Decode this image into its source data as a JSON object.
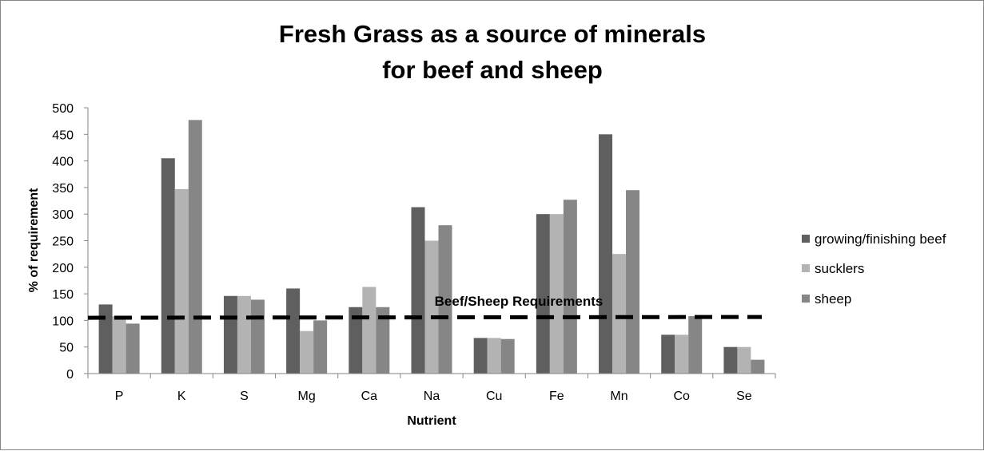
{
  "chart_data": {
    "type": "bar",
    "title_lines": [
      "Fresh Grass as a source of minerals",
      "for beef and sheep"
    ],
    "xlabel": "Nutrient",
    "ylabel": "% of requirement",
    "ylim": [
      0,
      500
    ],
    "yticks": [
      "0",
      "50",
      "100",
      "150",
      "200",
      "250",
      "300",
      "350",
      "400",
      "450",
      "500"
    ],
    "categories": [
      "P",
      "K",
      "S",
      "Mg",
      "Ca",
      "Na",
      "Cu",
      "Fe",
      "Mn",
      "Co",
      "Se"
    ],
    "series": [
      {
        "name": "growing/finishing beef",
        "color": "#5f5f5f",
        "values": [
          130,
          405,
          146,
          160,
          125,
          313,
          67,
          300,
          450,
          73,
          50
        ]
      },
      {
        "name": "sucklers",
        "color": "#b3b3b3",
        "values": [
          108,
          347,
          146,
          80,
          163,
          250,
          67,
          300,
          225,
          73,
          50
        ]
      },
      {
        "name": "sheep",
        "color": "#868686",
        "values": [
          94,
          477,
          139,
          100,
          125,
          279,
          65,
          327,
          345,
          108,
          26
        ]
      }
    ],
    "reference_line": {
      "label": "Beef/Sheep Requirements",
      "value": 105,
      "style": "dashed",
      "color": "#000000"
    },
    "grid": false,
    "legend": "right"
  }
}
